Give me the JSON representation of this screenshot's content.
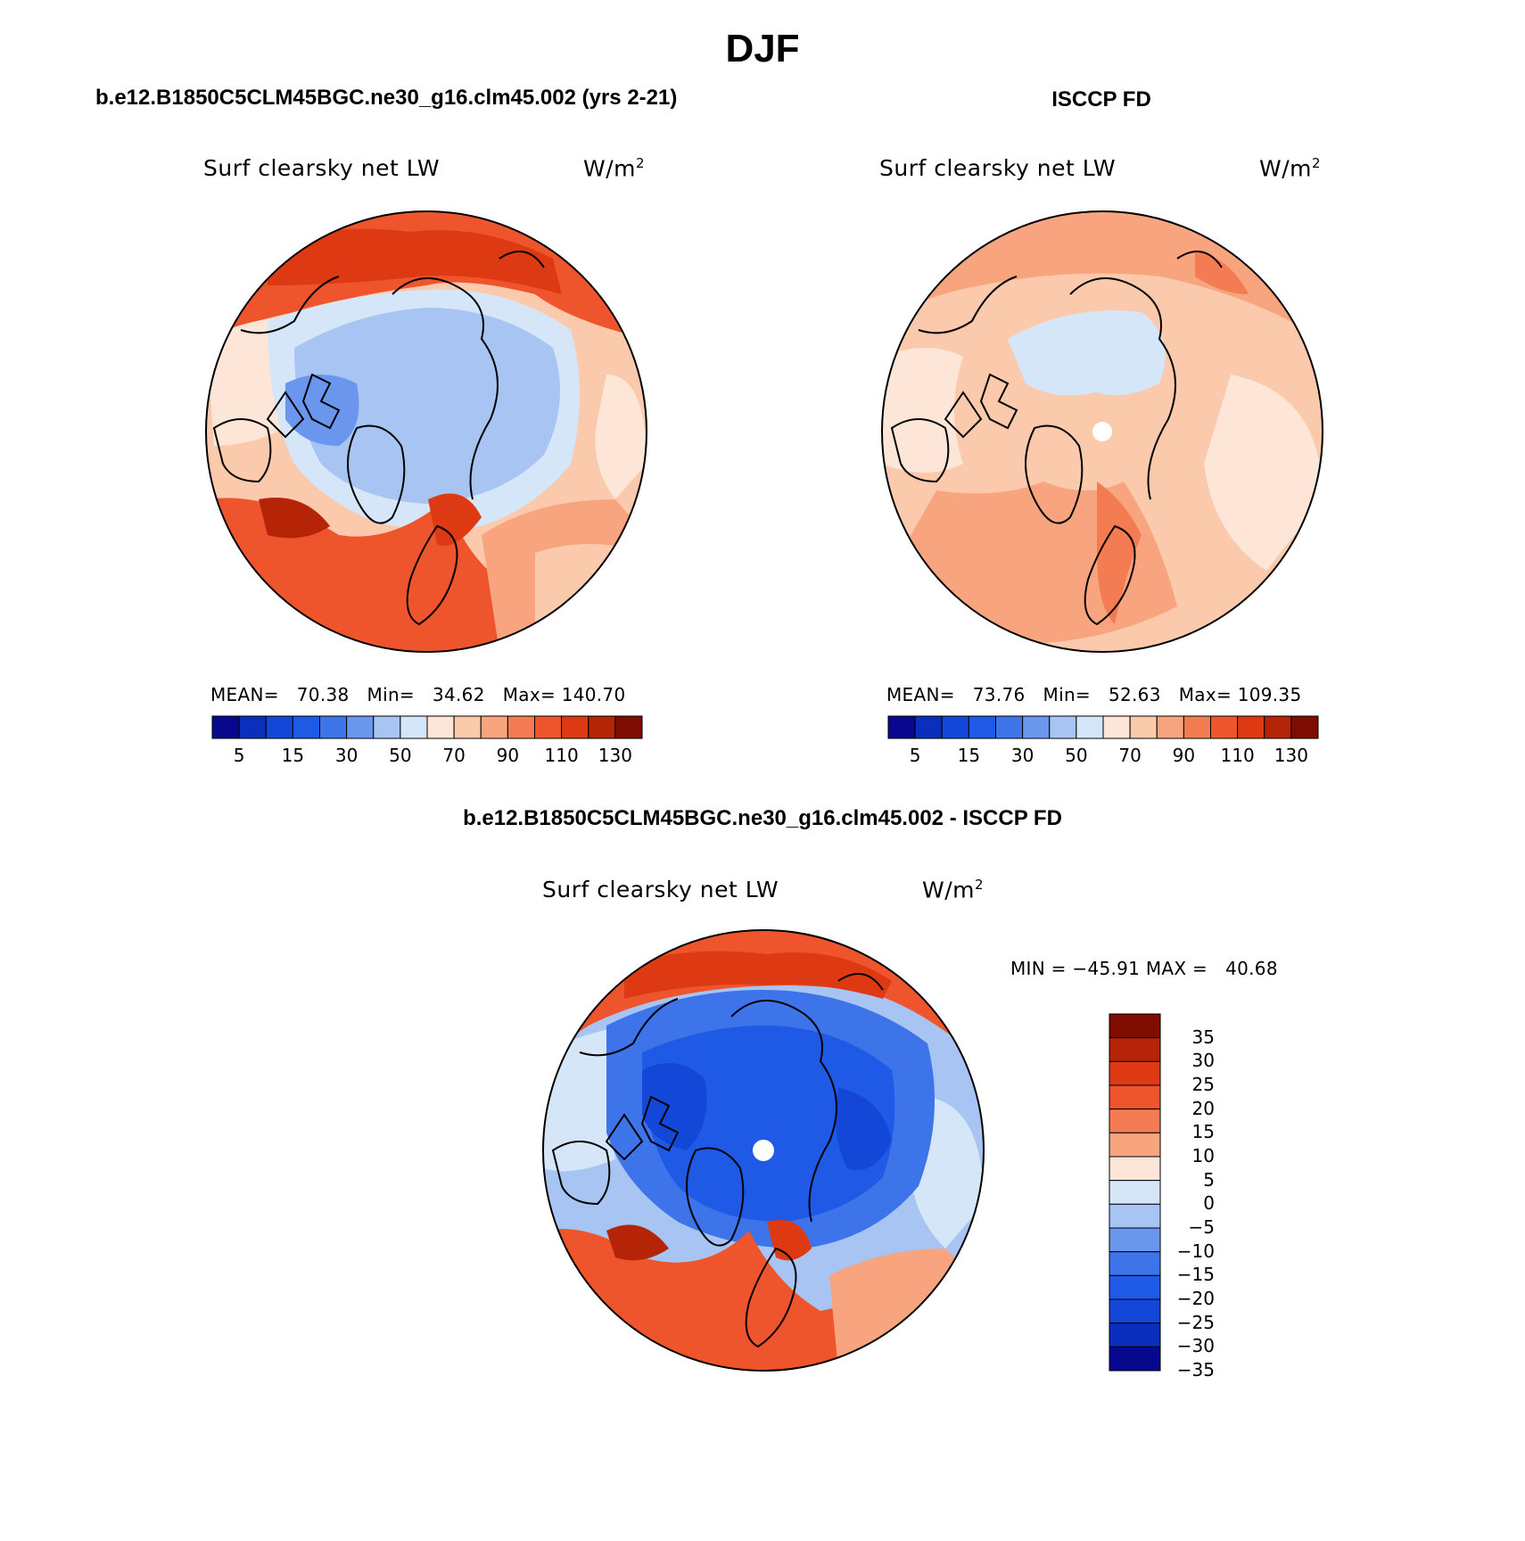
{
  "figure": {
    "title": "DJF",
    "left_title": "b.e12.B1850C5CLM45BGC.ne30_g16.clm45.002 (yrs 2-21)",
    "right_title": "ISCCP FD",
    "diff_title": "b.e12.B1850C5CLM45BGC.ne30_g16.clm45.002 - ISCCP FD"
  },
  "panels": {
    "model": {
      "variable": "Surf clearsky net LW",
      "units": "W/m",
      "units_sup": "2",
      "mean_label": "MEAN=",
      "mean": "70.38",
      "min_label": "Min=",
      "min": "34.62",
      "max_label": "Max=",
      "max": "140.70"
    },
    "obs": {
      "variable": "Surf clearsky net LW",
      "units": "W/m",
      "units_sup": "2",
      "mean_label": "MEAN=",
      "mean": "73.76",
      "min_label": "Min=",
      "min": "52.63",
      "max_label": "Max=",
      "max": "109.35"
    },
    "diff": {
      "variable": "Surf clearsky net LW",
      "units": "W/m",
      "units_sup": "2",
      "range_text": "MIN = −45.91 MAX =   40.68"
    }
  },
  "colorbars": {
    "absolute": {
      "colors": [
        "#08088f",
        "#0a2fbd",
        "#1247d7",
        "#1f5ae6",
        "#3d74ea",
        "#6a96ee",
        "#a8c4f3",
        "#d6e6f9",
        "#fde6d8",
        "#fbc9ab",
        "#f8a57f",
        "#f47c52",
        "#ee552d",
        "#dd3a14",
        "#b52406",
        "#7f0c00"
      ],
      "tick_labels": [
        "5",
        "15",
        "30",
        "50",
        "70",
        "90",
        "110",
        "130"
      ]
    },
    "difference": {
      "colors": [
        "#7f0c00",
        "#b52406",
        "#dd3a14",
        "#ee552d",
        "#f47c52",
        "#f8a57f",
        "#fde6d8",
        "#d6e6f9",
        "#a8c4f3",
        "#6a96ee",
        "#3d74ea",
        "#1f5ae6",
        "#1247d7",
        "#0a2fbd",
        "#08088f"
      ],
      "tick_labels": [
        "35",
        "30",
        "25",
        "20",
        "15",
        "10",
        "5",
        "0",
        "−5",
        "−10",
        "−15",
        "−20",
        "−25",
        "−30",
        "−35"
      ]
    }
  }
}
